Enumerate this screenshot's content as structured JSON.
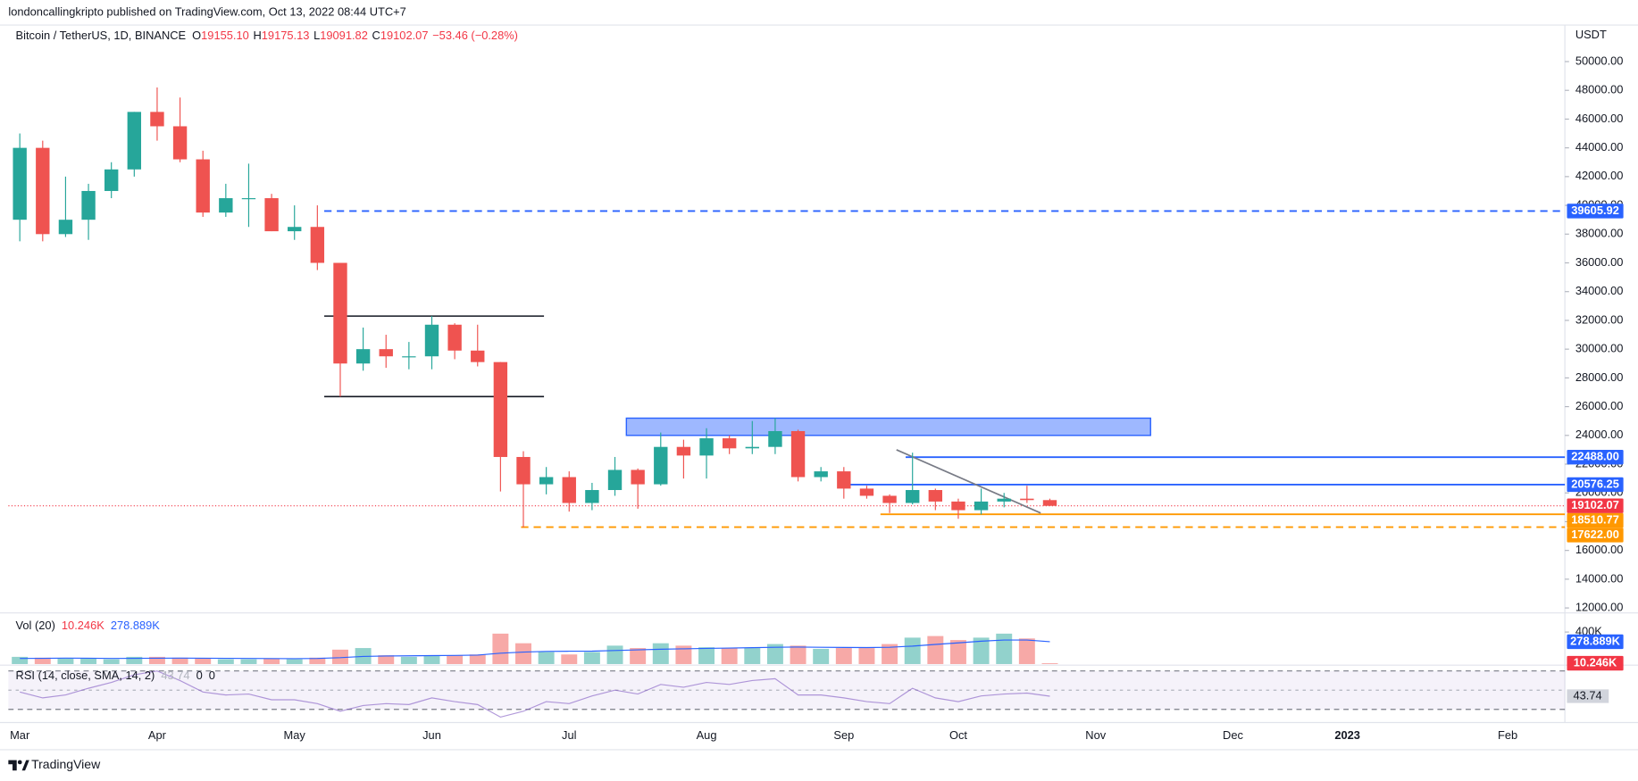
{
  "chart_data": {
    "type": "candlestick",
    "attribution": "londoncallingkripto published on TradingView.com, Oct 13, 2022 08:44 UTC+7",
    "symbol": "Bitcoin / TetherUS, 1D, BINANCE",
    "ohlc_legend": [
      {
        "key": "O",
        "value": "19155.10"
      },
      {
        "key": "H",
        "value": "19175.13"
      },
      {
        "key": "L",
        "value": "19091.82"
      },
      {
        "key": "C",
        "value": "19102.07"
      }
    ],
    "change": "−53.46 (−0.28%)",
    "currency": "USDT",
    "categories": [
      "Mar",
      null,
      null,
      null,
      null,
      null,
      "Apr",
      null,
      null,
      null,
      null,
      null,
      "May",
      null,
      null,
      null,
      null,
      null,
      "Jun",
      null,
      null,
      null,
      null,
      null,
      "Jul",
      null,
      null,
      null,
      null,
      null,
      "Aug",
      null,
      null,
      null,
      null,
      null,
      "Sep",
      null,
      null,
      null,
      null,
      "Oct",
      null,
      null,
      null,
      null,
      null,
      "Nov",
      null,
      null,
      null,
      null,
      null,
      "Dec",
      null,
      null,
      null,
      null,
      "2023",
      null,
      null,
      null,
      null,
      null,
      null,
      "Feb",
      null,
      null
    ],
    "open": [
      39000,
      44000,
      38000,
      39000,
      41000,
      42500,
      46500,
      45500,
      43200,
      39500,
      40500,
      40500,
      38200,
      38500,
      36000,
      29000,
      30000,
      29500,
      29500,
      31700,
      29900,
      29100,
      22500,
      20600,
      21100,
      19300,
      20200,
      21600,
      20600,
      23200,
      22600,
      23800,
      23100,
      23200,
      24300,
      21100,
      21500,
      20300,
      19800,
      19300,
      20200,
      19400,
      18800,
      19400,
      19600,
      19500,
      null,
      null,
      null,
      null,
      null,
      null,
      null,
      null,
      null,
      null,
      null,
      null,
      null,
      null,
      null,
      null,
      null,
      null,
      null,
      null,
      null,
      null
    ],
    "high": [
      45000,
      44500,
      42000,
      41500,
      43000,
      46500,
      48200,
      47500,
      43800,
      41500,
      42900,
      40800,
      40000,
      40000,
      36000,
      31500,
      31000,
      30500,
      32300,
      31800,
      31700,
      29100,
      22900,
      21800,
      21500,
      20700,
      22500,
      21700,
      24200,
      23700,
      24500,
      24000,
      25000,
      25200,
      24400,
      21800,
      21800,
      20500,
      19900,
      22800,
      20300,
      19600,
      20300,
      20000,
      20500,
      19600,
      null,
      null,
      null,
      null,
      null,
      null,
      null,
      null,
      null,
      null,
      null,
      null,
      null,
      null,
      null,
      null,
      null,
      null,
      null,
      null,
      null,
      null
    ],
    "low": [
      37500,
      37500,
      37800,
      37600,
      40500,
      42000,
      44500,
      43000,
      39200,
      39200,
      38500,
      38200,
      37600,
      35500,
      26700,
      28500,
      28700,
      28600,
      28600,
      29300,
      28800,
      20100,
      17600,
      19900,
      18700,
      18800,
      19800,
      18900,
      20500,
      21000,
      21000,
      22700,
      22700,
      22700,
      20800,
      20800,
      19600,
      19600,
      18600,
      19200,
      18800,
      18200,
      18500,
      19000,
      19300,
      19090,
      null,
      null,
      null,
      null,
      null,
      null,
      null,
      null,
      null,
      null,
      null,
      null,
      null,
      null,
      null,
      null,
      null,
      null,
      null,
      null,
      null,
      null
    ],
    "close": [
      44000,
      38000,
      39000,
      41000,
      42500,
      46500,
      45500,
      43200,
      39500,
      40500,
      40500,
      38200,
      38500,
      36000,
      29000,
      30000,
      29500,
      29500,
      31700,
      29900,
      29100,
      22500,
      20600,
      21100,
      19300,
      20200,
      21600,
      20600,
      23200,
      22600,
      23800,
      23100,
      23200,
      24300,
      21100,
      21500,
      20300,
      19800,
      19300,
      20200,
      19400,
      18800,
      19400,
      19600,
      19500,
      19102.07,
      null,
      null,
      null,
      null,
      null,
      null,
      null,
      null,
      null,
      null,
      null,
      null,
      null,
      null,
      null,
      null,
      null,
      null,
      null,
      null,
      null,
      null
    ],
    "up_color": "#26a69a",
    "down_color": "#ef5350",
    "last_color": "#f23645",
    "ylim": [
      11800,
      52250
    ],
    "yticks": [
      {
        "value": 12000,
        "label": "12000.00"
      },
      {
        "value": 14000,
        "label": "14000.00"
      },
      {
        "value": 16000,
        "label": "16000.00"
      },
      {
        "value": 18000,
        "label": "18000.00"
      },
      {
        "value": 20000,
        "label": "20000.00"
      },
      {
        "value": 22000,
        "label": "22000.00"
      },
      {
        "value": 24000,
        "label": "24000.00"
      },
      {
        "value": 26000,
        "label": "26000.00"
      },
      {
        "value": 28000,
        "label": "28000.00"
      },
      {
        "value": 30000,
        "label": "30000.00"
      },
      {
        "value": 32000,
        "label": "32000.00"
      },
      {
        "value": 34000,
        "label": "34000.00"
      },
      {
        "value": 36000,
        "label": "36000.00"
      },
      {
        "value": 38000,
        "label": "38000.00"
      },
      {
        "value": 40000,
        "label": "40000.00"
      },
      {
        "value": 42000,
        "label": "42000.00"
      },
      {
        "value": 44000,
        "label": "44000.00"
      },
      {
        "value": 46000,
        "label": "46000.00"
      },
      {
        "value": 48000,
        "label": "48000.00"
      },
      {
        "value": 50000,
        "label": "50000.00"
      }
    ],
    "levels": [
      {
        "value": 39605.92,
        "label": "39605.92",
        "color": "#2962ff",
        "dashed": true
      },
      {
        "value": 22488,
        "label": "22488.00",
        "color": "#2962ff",
        "dashed": false
      },
      {
        "value": 20576.25,
        "label": "20576.25",
        "color": "#2962ff",
        "dashed": false
      },
      {
        "value": 18510.77,
        "label": "18510.77",
        "color": "#ff9800",
        "dashed": false
      },
      {
        "value": 17622,
        "label": "17622.00",
        "color": "#ff9800",
        "dashed": true
      }
    ],
    "lines": [
      {
        "value": 32300,
        "color": "#131722"
      },
      {
        "value": 26700,
        "color": "#131722"
      }
    ],
    "zone": {
      "low": 24000,
      "high": 25200,
      "color": "#2962ff"
    },
    "trendline": {
      "start": 23000,
      "end": 18600,
      "color": "#787b86"
    },
    "volume": {
      "title": "Vol (20)",
      "values": [
        90000,
        80000,
        70000,
        70000,
        60000,
        90000,
        90000,
        80000,
        70000,
        60000,
        60000,
        70000,
        60000,
        80000,
        180000,
        200000,
        110000,
        90000,
        100000,
        110000,
        120000,
        380000,
        260000,
        150000,
        120000,
        150000,
        230000,
        200000,
        260000,
        230000,
        210000,
        200000,
        200000,
        250000,
        230000,
        190000,
        200000,
        200000,
        250000,
        330000,
        350000,
        300000,
        330000,
        380000,
        320000,
        10246,
        null,
        null,
        null,
        null,
        null,
        null,
        null,
        null,
        null,
        null,
        null,
        null,
        null,
        null,
        null,
        null,
        null,
        null,
        null,
        null,
        null,
        null
      ],
      "last_label": "10.246K",
      "ma": [
        70000,
        72000,
        74000,
        73000,
        71000,
        72000,
        73000,
        74000,
        73000,
        72000,
        70000,
        69000,
        68000,
        70000,
        80000,
        95000,
        100000,
        103000,
        106000,
        108000,
        112000,
        135000,
        150000,
        158000,
        160000,
        162000,
        170000,
        178000,
        185000,
        190000,
        195000,
        200000,
        205000,
        210000,
        212000,
        210000,
        208000,
        206000,
        210000,
        225000,
        245000,
        265000,
        285000,
        300000,
        300000,
        278889,
        null,
        null,
        null,
        null,
        null,
        null,
        null,
        null,
        null,
        null,
        null,
        null,
        null,
        null,
        null,
        null,
        null,
        null,
        null,
        null,
        null,
        null
      ],
      "ma_label": "278.889K",
      "ma_color": "#2962ff",
      "ylim": [
        0,
        600000
      ],
      "yticks": [
        {
          "value": 400000,
          "label": "400K"
        }
      ]
    },
    "rsi": {
      "title": "RSI (14, close, SMA, 14, 2)",
      "values": [
        48,
        42,
        45,
        52,
        58,
        66,
        70,
        60,
        48,
        45,
        46,
        40,
        40,
        36,
        28,
        34,
        36,
        35,
        42,
        38,
        35,
        22,
        28,
        38,
        36,
        44,
        50,
        46,
        56,
        53,
        58,
        56,
        60,
        62,
        45,
        45,
        42,
        38,
        36,
        52,
        42,
        38,
        44,
        46,
        47,
        43.74,
        null,
        null,
        null,
        null,
        null,
        null,
        null,
        null,
        null,
        null,
        null,
        null,
        null,
        null,
        null,
        null,
        null,
        null,
        null,
        null,
        null,
        null
      ],
      "extra": [
        0,
        0
      ],
      "color": "#7e57c2",
      "ylim": [
        25,
        75
      ],
      "bands": [
        30,
        70
      ]
    },
    "footer": "TradingView"
  }
}
